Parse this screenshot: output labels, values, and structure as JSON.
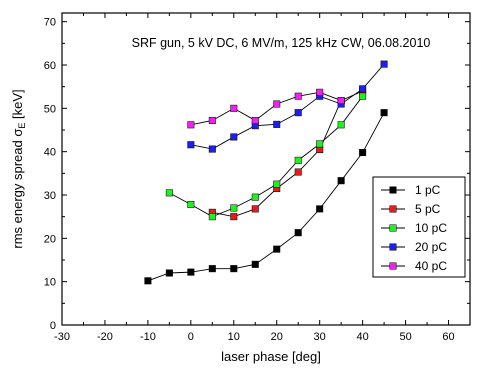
{
  "chart_data": {
    "type": "scatter",
    "title": "SRF gun, 5 kV DC, 6 MV/m, 125 kHz CW, 06.08.2010",
    "xlabel": "laser phase [deg]",
    "ylabel_main": "rms energy spread σ",
    "ylabel_sub": "E",
    "ylabel_unit": " [keV]",
    "xlim": [
      -30,
      65
    ],
    "ylim": [
      0,
      72
    ],
    "xticks": [
      -30,
      -20,
      -10,
      0,
      10,
      20,
      30,
      40,
      50,
      60
    ],
    "yticks": [
      0,
      10,
      20,
      30,
      40,
      50,
      60,
      70
    ],
    "legend_position": "center-right",
    "series": [
      {
        "name": "1 pC",
        "color": "#000000",
        "points": [
          [
            -10,
            10.2
          ],
          [
            -5,
            12.0
          ],
          [
            0,
            12.2
          ],
          [
            5,
            13.0
          ],
          [
            10,
            13.0
          ],
          [
            15,
            14.0
          ],
          [
            20,
            17.5
          ],
          [
            25,
            21.3
          ],
          [
            30,
            26.8
          ],
          [
            35,
            33.3
          ],
          [
            40,
            39.8
          ],
          [
            45,
            49.0
          ]
        ]
      },
      {
        "name": "5 pC",
        "color": "#e01e1e",
        "points": [
          [
            5,
            26.0
          ],
          [
            10,
            25.0
          ],
          [
            15,
            26.8
          ],
          [
            20,
            31.5
          ],
          [
            25,
            35.3
          ],
          [
            30,
            40.5
          ],
          [
            35,
            51.8
          ],
          [
            40,
            54.0
          ]
        ]
      },
      {
        "name": "10 pC",
        "color": "#22ee22",
        "points": [
          [
            -5,
            30.5
          ],
          [
            0,
            27.8
          ],
          [
            5,
            25.0
          ],
          [
            10,
            27.0
          ],
          [
            15,
            29.5
          ],
          [
            20,
            32.5
          ],
          [
            25,
            38.0
          ],
          [
            30,
            41.8
          ],
          [
            35,
            46.2
          ],
          [
            40,
            52.8
          ]
        ]
      },
      {
        "name": "20 pC",
        "color": "#1f1fe8",
        "points": [
          [
            0,
            41.6
          ],
          [
            5,
            40.6
          ],
          [
            10,
            43.4
          ],
          [
            15,
            46.0
          ],
          [
            20,
            46.3
          ],
          [
            25,
            49.0
          ],
          [
            30,
            52.8
          ],
          [
            35,
            51.0
          ],
          [
            40,
            54.5
          ],
          [
            45,
            60.2
          ]
        ]
      },
      {
        "name": "40 pC",
        "color": "#ee22ee",
        "points": [
          [
            0,
            46.2
          ],
          [
            5,
            47.2
          ],
          [
            10,
            50.0
          ],
          [
            15,
            47.2
          ],
          [
            20,
            51.0
          ],
          [
            25,
            52.8
          ],
          [
            30,
            53.7
          ],
          [
            35,
            51.8
          ]
        ]
      }
    ]
  }
}
